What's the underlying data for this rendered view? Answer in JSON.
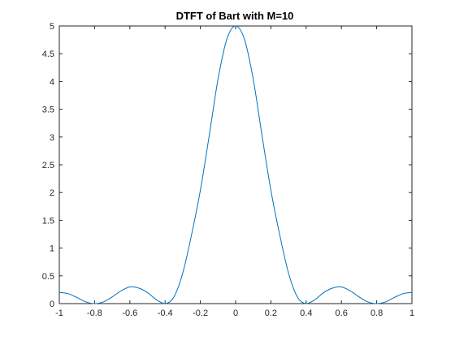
{
  "figure": {
    "background": "#ffffff",
    "axes_color": "#262626"
  },
  "chart_data": {
    "type": "line",
    "title": "DTFT of Bart with M=10",
    "xlabel": "",
    "ylabel": "",
    "xlim": [
      -1,
      1
    ],
    "ylim": [
      0,
      5
    ],
    "xticks": [
      -1,
      -0.8,
      -0.6,
      -0.4,
      -0.2,
      0,
      0.2,
      0.4,
      0.6,
      0.8,
      1
    ],
    "xtick_labels": [
      "-1",
      "-0.8",
      "-0.6",
      "-0.4",
      "-0.2",
      "0",
      "0.2",
      "0.4",
      "0.6",
      "0.8",
      "1"
    ],
    "yticks": [
      0,
      0.5,
      1,
      1.5,
      2,
      2.5,
      3,
      3.5,
      4,
      4.5,
      5
    ],
    "ytick_labels": [
      "0",
      "0.5",
      "1",
      "1.5",
      "2",
      "2.5",
      "3",
      "3.5",
      "4",
      "4.5",
      "5"
    ],
    "grid": false,
    "legend": "none",
    "series": [
      {
        "color": "#0072bd",
        "x": [
          -1,
          -0.95,
          -0.9,
          -0.85,
          -0.8,
          -0.75,
          -0.7,
          -0.65,
          -0.6,
          -0.55,
          -0.5,
          -0.45,
          -0.4,
          -0.35,
          -0.3,
          -0.25,
          -0.2,
          -0.15,
          -0.1,
          -0.05,
          0,
          0.05,
          0.1,
          0.15,
          0.2,
          0.25,
          0.3,
          0.35,
          0.4,
          0.45,
          0.5,
          0.55,
          0.6,
          0.65,
          0.7,
          0.75,
          0.8,
          0.85,
          0.9,
          0.95,
          1
        ],
        "y": [
          0.2,
          0.18,
          0.11,
          0.03,
          0,
          0.03,
          0.12,
          0.23,
          0.3,
          0.28,
          0.2,
          0.07,
          0,
          0.12,
          0.55,
          1.24,
          2.04,
          3.02,
          4.04,
          4.76,
          5,
          4.76,
          4.04,
          3.02,
          2.04,
          1.24,
          0.55,
          0.12,
          0,
          0.07,
          0.2,
          0.28,
          0.3,
          0.23,
          0.12,
          0.03,
          0,
          0.03,
          0.11,
          0.18,
          0.2
        ]
      }
    ]
  }
}
